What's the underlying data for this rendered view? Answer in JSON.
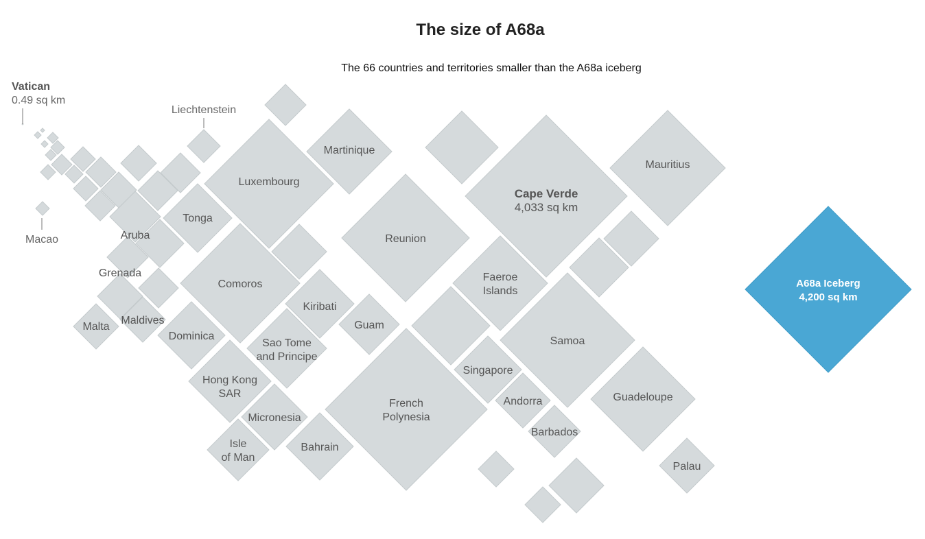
{
  "title": "The size of A68a",
  "subtitle": "The 66 countries and territories smaller than the A68a iceberg",
  "colors": {
    "tile": "#d5dadc",
    "tile_border": "#c4cacc",
    "highlight": "#4aa7d4",
    "text": "#555555"
  },
  "annotations": {
    "vatican_name": "Vatican",
    "vatican_area": "0.49 sq km",
    "liechtenstein": "Liechtenstein",
    "macao": "Macao"
  },
  "chart_data": {
    "type": "diamond-area-chart",
    "unit": "sq km",
    "highlight": {
      "name": "A68a Iceberg",
      "area_label": "4,200 sq km"
    },
    "labeled_tiles": [
      {
        "id": "cape-verde",
        "lines": [
          "Cape Verde",
          "4,033 sq km"
        ]
      },
      {
        "id": "mauritius",
        "lines": [
          "Mauritius"
        ]
      },
      {
        "id": "reunion",
        "lines": [
          "Reunion"
        ]
      },
      {
        "id": "samoa",
        "lines": [
          "Samoa"
        ]
      },
      {
        "id": "french-polynesia",
        "lines": [
          "French",
          "Polynesia"
        ]
      },
      {
        "id": "luxembourg",
        "lines": [
          "Luxembourg"
        ]
      },
      {
        "id": "comoros",
        "lines": [
          "Comoros"
        ]
      },
      {
        "id": "guadeloupe",
        "lines": [
          "Guadeloupe"
        ]
      },
      {
        "id": "martinique",
        "lines": [
          "Martinique"
        ]
      },
      {
        "id": "faeroe-islands",
        "lines": [
          "Faeroe",
          "Islands"
        ]
      },
      {
        "id": "tonga",
        "lines": [
          "Tonga"
        ]
      },
      {
        "id": "dominica",
        "lines": [
          "Dominica"
        ]
      },
      {
        "id": "hong-kong-sar",
        "lines": [
          "Hong Kong",
          "SAR"
        ]
      },
      {
        "id": "sao-tome-and-principe",
        "lines": [
          "Sao Tome",
          "and Principe"
        ]
      },
      {
        "id": "kiribati",
        "lines": [
          "Kiribati"
        ]
      },
      {
        "id": "micronesia",
        "lines": [
          "Micronesia"
        ]
      },
      {
        "id": "bahrain",
        "lines": [
          "Bahrain"
        ]
      },
      {
        "id": "singapore",
        "lines": [
          "Singapore"
        ]
      },
      {
        "id": "guam",
        "lines": [
          "Guam"
        ]
      },
      {
        "id": "isle-of-man",
        "lines": [
          "Isle",
          "of Man"
        ]
      },
      {
        "id": "andorra",
        "lines": [
          "Andorra"
        ]
      },
      {
        "id": "barbados",
        "lines": [
          "Barbados"
        ]
      },
      {
        "id": "palau",
        "lines": [
          "Palau"
        ]
      },
      {
        "id": "aruba",
        "lines": [
          "Aruba"
        ]
      },
      {
        "id": "grenada",
        "lines": [
          "Grenada"
        ]
      },
      {
        "id": "maldives",
        "lines": [
          "Maldives"
        ]
      },
      {
        "id": "malta",
        "lines": [
          "Malta"
        ]
      }
    ]
  }
}
